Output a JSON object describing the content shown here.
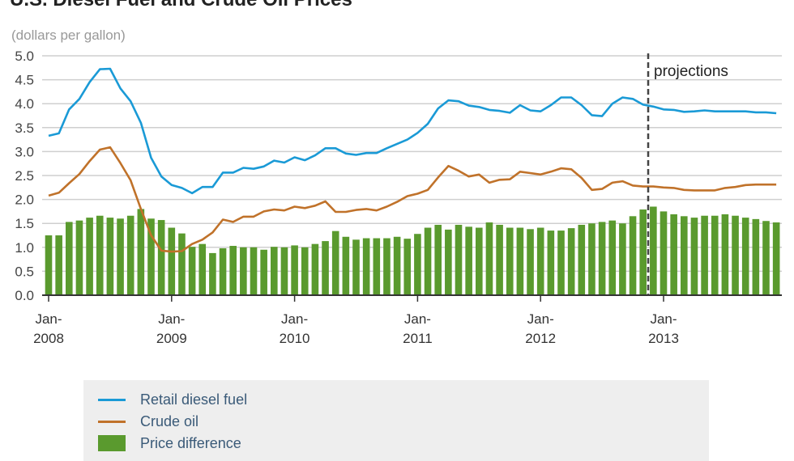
{
  "chart_data": {
    "type": "bar+line",
    "title": "U.S. Diesel Fuel and Crude Oil Prices",
    "ylabel": "(dollars per gallon)",
    "ylim": [
      0,
      5
    ],
    "yticks": [
      "0.0",
      "0.5",
      "1.0",
      "1.5",
      "2.0",
      "2.5",
      "3.0",
      "3.5",
      "4.0",
      "4.5",
      "5.0"
    ],
    "x_start": "Jan 2008",
    "x_frequency": "monthly",
    "xtick_labels": [
      {
        "month_index": 0,
        "line1": "Jan-",
        "line2": "2008"
      },
      {
        "month_index": 12,
        "line1": "Jan-",
        "line2": "2009"
      },
      {
        "month_index": 24,
        "line1": "Jan-",
        "line2": "2010"
      },
      {
        "month_index": 36,
        "line1": "Jan-",
        "line2": "2011"
      },
      {
        "month_index": 48,
        "line1": "Jan-",
        "line2": "2012"
      },
      {
        "month_index": 60,
        "line1": "Jan-",
        "line2": "2013"
      }
    ],
    "projection_start_month_index": 58.5,
    "projection_label": "projections",
    "grid": true,
    "legend_placement": "bottom",
    "series": [
      {
        "name": "Retail diesel fuel",
        "type": "line",
        "color": "#1a9ad6",
        "values": [
          3.33,
          3.38,
          3.88,
          4.1,
          4.45,
          4.72,
          4.73,
          4.32,
          4.05,
          3.6,
          2.87,
          2.48,
          2.3,
          2.24,
          2.13,
          2.26,
          2.26,
          2.56,
          2.56,
          2.66,
          2.64,
          2.69,
          2.81,
          2.77,
          2.88,
          2.82,
          2.92,
          3.07,
          3.07,
          2.96,
          2.93,
          2.97,
          2.97,
          3.07,
          3.16,
          3.25,
          3.39,
          3.58,
          3.9,
          4.07,
          4.05,
          3.96,
          3.93,
          3.87,
          3.85,
          3.81,
          3.97,
          3.86,
          3.84,
          3.97,
          4.13,
          4.13,
          3.97,
          3.76,
          3.74,
          4.0,
          4.13,
          4.1,
          3.98,
          3.94,
          3.88,
          3.87,
          3.83,
          3.84,
          3.86,
          3.84,
          3.84,
          3.84,
          3.84,
          3.82,
          3.82,
          3.8
        ]
      },
      {
        "name": "Crude oil",
        "type": "line",
        "color": "#c0722a",
        "values": [
          2.08,
          2.14,
          2.34,
          2.53,
          2.8,
          3.04,
          3.09,
          2.76,
          2.4,
          1.8,
          1.25,
          0.93,
          0.91,
          0.92,
          1.07,
          1.16,
          1.31,
          1.58,
          1.53,
          1.64,
          1.64,
          1.75,
          1.79,
          1.77,
          1.85,
          1.82,
          1.87,
          1.96,
          1.74,
          1.74,
          1.78,
          1.8,
          1.77,
          1.85,
          1.95,
          2.07,
          2.12,
          2.2,
          2.46,
          2.7,
          2.6,
          2.48,
          2.52,
          2.35,
          2.41,
          2.42,
          2.58,
          2.55,
          2.52,
          2.58,
          2.65,
          2.63,
          2.45,
          2.2,
          2.22,
          2.35,
          2.38,
          2.29,
          2.27,
          2.27,
          2.25,
          2.24,
          2.2,
          2.19,
          2.19,
          2.19,
          2.24,
          2.26,
          2.3,
          2.31,
          2.31,
          2.31
        ]
      },
      {
        "name": "Price difference",
        "type": "bar",
        "color": "#5a9a2e",
        "values": [
          1.25,
          1.25,
          1.53,
          1.56,
          1.62,
          1.66,
          1.62,
          1.6,
          1.66,
          1.8,
          1.6,
          1.57,
          1.41,
          1.29,
          1.01,
          1.07,
          0.88,
          0.98,
          1.03,
          1.0,
          1.0,
          0.95,
          1.01,
          1.0,
          1.04,
          1.0,
          1.07,
          1.13,
          1.34,
          1.22,
          1.16,
          1.19,
          1.19,
          1.19,
          1.22,
          1.18,
          1.28,
          1.41,
          1.47,
          1.37,
          1.47,
          1.43,
          1.41,
          1.52,
          1.47,
          1.41,
          1.41,
          1.38,
          1.41,
          1.35,
          1.35,
          1.4,
          1.47,
          1.5,
          1.53,
          1.56,
          1.5,
          1.65,
          1.79,
          1.85,
          1.75,
          1.69,
          1.65,
          1.62,
          1.66,
          1.66,
          1.69,
          1.66,
          1.62,
          1.59,
          1.55,
          1.52
        ]
      }
    ]
  }
}
